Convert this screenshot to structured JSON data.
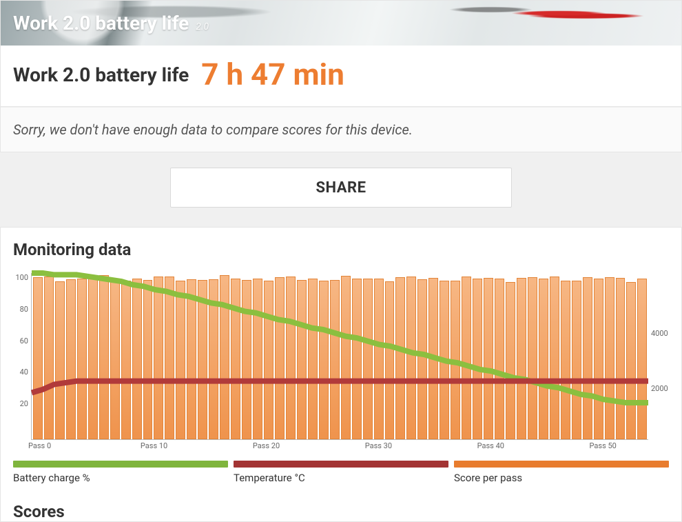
{
  "hero": {
    "title": "Work 2.0 battery life",
    "version": "2.0"
  },
  "headline": {
    "label": "Work 2.0 battery life",
    "value": "7 h 47 min",
    "value_color": "#ed7d31"
  },
  "nodata_message": "Sorry, we don't have enough data to compare scores for this device.",
  "share_button_label": "SHARE",
  "monitoring": {
    "title": "Monitoring data",
    "chart": {
      "type": "bar+line",
      "n_passes": 56,
      "x_tick_step": 10,
      "x_tick_prefix": "Pass ",
      "left_axis": {
        "min": 0,
        "max": 100,
        "ticks": [
          20,
          40,
          60,
          80,
          100
        ],
        "fontsize": 11,
        "color": "#666"
      },
      "right_axis": {
        "min": 0,
        "max": 6000,
        "ticks": [
          2000,
          4000
        ],
        "fontsize": 11,
        "color": "#666"
      },
      "bars": {
        "color_top": "#f7b17a",
        "color_bottom": "#ee8b3e",
        "border": "#e07a28",
        "values_axis": "right",
        "value_base": 5800,
        "value_jitter": 120
      },
      "battery_line": {
        "color": "#8bbf3f",
        "width": 2,
        "values_axis": "left",
        "values": [
          100,
          100,
          99,
          99,
          99,
          98,
          97,
          96,
          95,
          93,
          92,
          90,
          89,
          87,
          86,
          84,
          82,
          81,
          79,
          77,
          76,
          74,
          72,
          71,
          69,
          67,
          66,
          64,
          62,
          61,
          59,
          57,
          56,
          54,
          52,
          51,
          49,
          47,
          46,
          44,
          42,
          41,
          39,
          37,
          36,
          34,
          32,
          31,
          29,
          27,
          26,
          24,
          23,
          22,
          22,
          22
        ]
      },
      "temperature_line": {
        "color": "#b13a3a",
        "width": 2,
        "values_axis": "left",
        "values": [
          28,
          30,
          33,
          34,
          35,
          35,
          35,
          35,
          35,
          35,
          35,
          35,
          35,
          35,
          35,
          35,
          35,
          35,
          35,
          35,
          35,
          35,
          35,
          35,
          35,
          35,
          35,
          35,
          35,
          35,
          35,
          35,
          35,
          35,
          35,
          35,
          35,
          35,
          35,
          35,
          35,
          35,
          35,
          35,
          35,
          35,
          35,
          35,
          35,
          35,
          35,
          35,
          35,
          35,
          35,
          35
        ]
      },
      "background_color": "#ffffff",
      "axis_color": "#bbbbbb"
    },
    "legend": [
      {
        "color": "#7fb53d",
        "label": "Battery charge %"
      },
      {
        "color": "#a33434",
        "label": "Temperature °C"
      },
      {
        "color": "#e87c2e",
        "label": "Score per pass"
      }
    ]
  },
  "scores_title": "Scores"
}
